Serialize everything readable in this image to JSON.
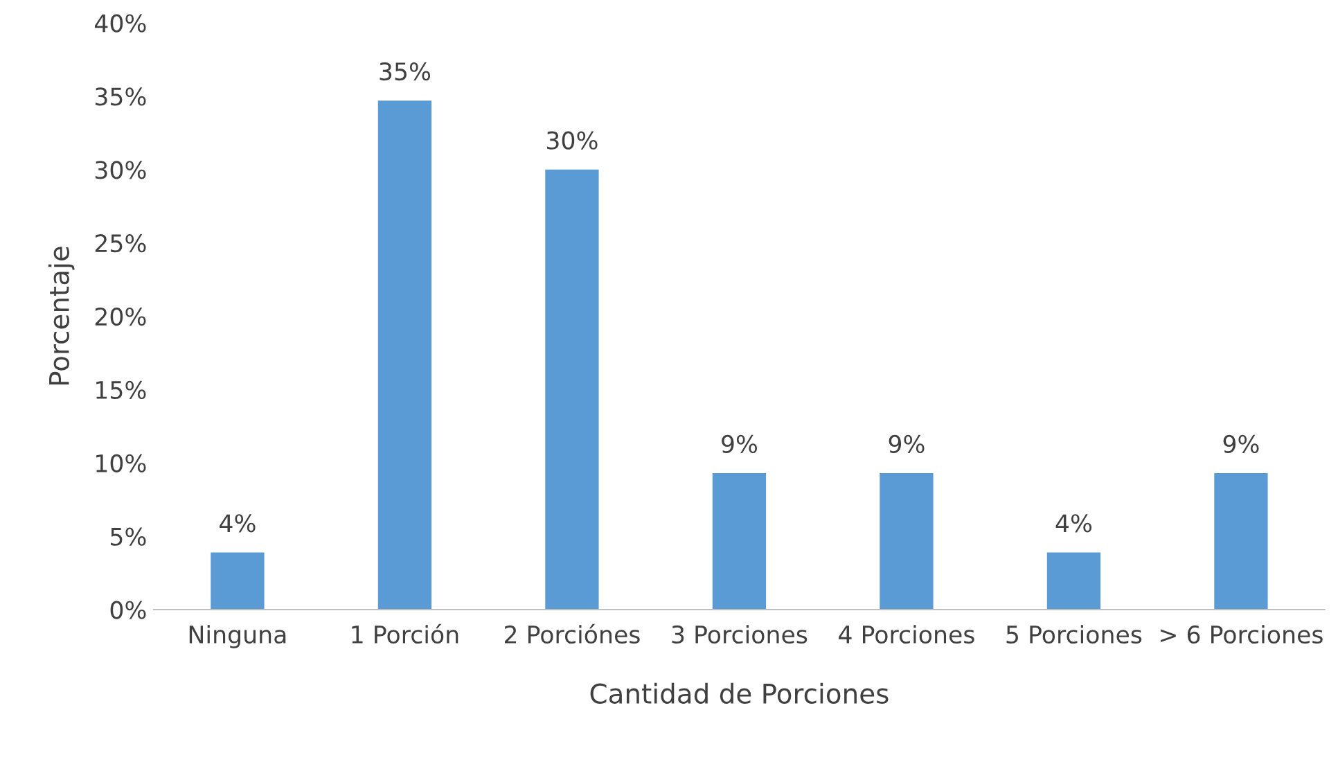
{
  "chart_data": {
    "type": "bar",
    "xlabel": "Cantidad de Porciones",
    "ylabel": "Porcentaje",
    "categories": [
      "Ninguna",
      "1 Porción",
      "2 Porciónes",
      "3 Porciones",
      "4 Porciones",
      "5 Porciones",
      "> 6 Porciones"
    ],
    "values": [
      3.9,
      34.7,
      30.0,
      9.3,
      9.3,
      3.9,
      9.3
    ],
    "value_labels": [
      "4%",
      "35%",
      "30%",
      "9%",
      "9%",
      "4%",
      "9%"
    ],
    "color": "#5b9bd5",
    "ylim": [
      0,
      40
    ],
    "yticks": [
      {
        "value": 0,
        "label": "0%"
      },
      {
        "value": 5,
        "label": "5%"
      },
      {
        "value": 10,
        "label": "10%"
      },
      {
        "value": 15,
        "label": "15%"
      },
      {
        "value": 20,
        "label": "20%"
      },
      {
        "value": 25,
        "label": "25%"
      },
      {
        "value": 30,
        "label": "30%"
      },
      {
        "value": 35,
        "label": "35%"
      },
      {
        "value": 40,
        "label": "40%"
      }
    ],
    "grid": false,
    "legend": false
  }
}
